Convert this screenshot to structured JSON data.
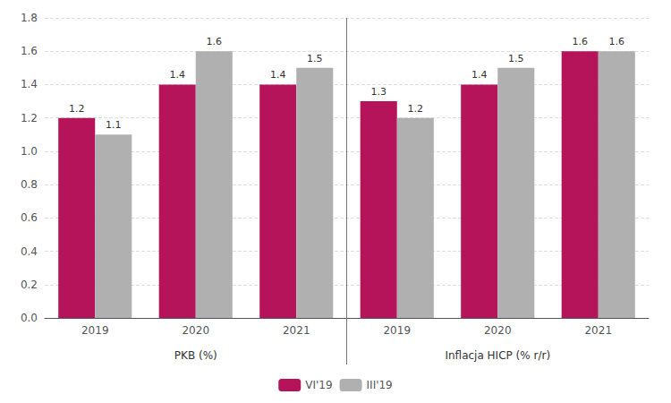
{
  "chart_data": {
    "type": "bar",
    "categories": [
      "2019",
      "2020",
      "2021",
      "2019",
      "2020",
      "2021"
    ],
    "group_labels": [
      "PKB (%)",
      "Inflacja HICP (% r/r)"
    ],
    "series": [
      {
        "name": "VI'19",
        "color": "#b5145b",
        "values": [
          1.2,
          1.4,
          1.4,
          1.3,
          1.4,
          1.6
        ]
      },
      {
        "name": "III'19",
        "color": "#b0b0b0",
        "values": [
          1.1,
          1.6,
          1.5,
          1.2,
          1.5,
          1.6
        ]
      }
    ],
    "ylim": [
      0.0,
      1.8
    ],
    "yticks": [
      {
        "value": 0,
        "label": "0.0"
      },
      0.2,
      0.4,
      0.6,
      0.8,
      {
        "value": 1,
        "label": "1.0"
      },
      1.2,
      1.4,
      1.6,
      1.8
    ],
    "grid": true,
    "legend": "bottom",
    "data_labels": true
  }
}
